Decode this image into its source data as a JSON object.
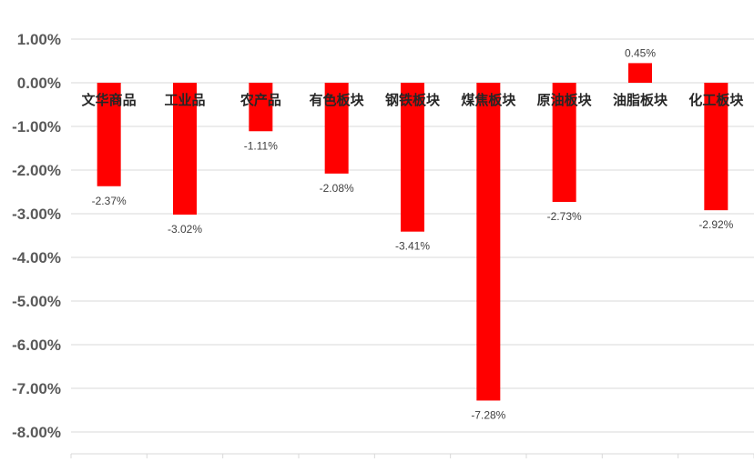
{
  "chart_data": {
    "type": "bar",
    "categories": [
      "文华商品",
      "工业品",
      "农产品",
      "有色板块",
      "钢铁板块",
      "煤焦板块",
      "原油板块",
      "油脂板块",
      "化工板块"
    ],
    "values": [
      -2.37,
      -3.02,
      -1.11,
      -2.08,
      -3.41,
      -7.28,
      -2.73,
      0.45,
      -2.92
    ],
    "value_labels": [
      "-2.37%",
      "-3.02%",
      "-1.11%",
      "-2.08%",
      "-3.41%",
      "-7.28%",
      "-2.73%",
      "0.45%",
      "-2.92%"
    ],
    "ytick_values": [
      1,
      0,
      -1,
      -2,
      -3,
      -4,
      -5,
      -6,
      -7,
      -8
    ],
    "ytick_labels": [
      "1.00%",
      "0.00%",
      "-1.00%",
      "-2.00%",
      "-3.00%",
      "-4.00%",
      "-5.00%",
      "-6.00%",
      "-7.00%",
      "-8.00%"
    ],
    "ylim": [
      -8.5,
      1.0
    ],
    "grid": true,
    "bar_color": "#ff0000",
    "title": "",
    "xlabel": "",
    "ylabel": ""
  }
}
